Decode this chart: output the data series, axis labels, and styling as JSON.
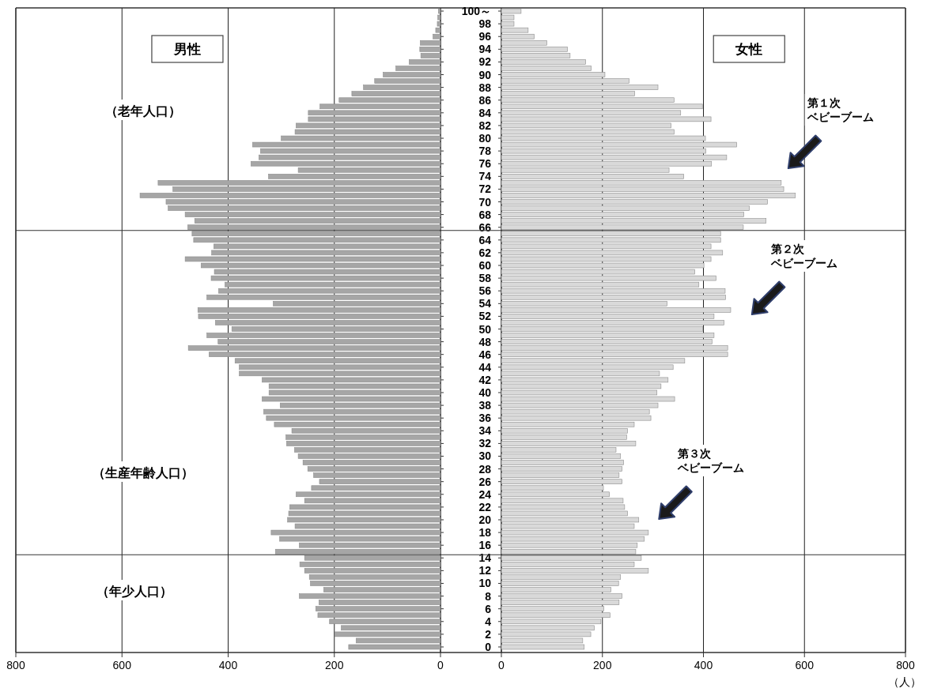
{
  "chart_data": [
    {
      "type": "bar",
      "orientation": "horizontal",
      "title": "男性",
      "x": [
        100,
        99,
        98,
        97,
        96,
        95,
        94,
        93,
        92,
        91,
        90,
        89,
        88,
        87,
        86,
        85,
        84,
        83,
        82,
        81,
        80,
        79,
        78,
        77,
        76,
        75,
        74,
        73,
        72,
        71,
        70,
        69,
        68,
        67,
        66,
        65,
        64,
        63,
        62,
        61,
        60,
        59,
        58,
        57,
        56,
        55,
        54,
        53,
        52,
        51,
        50,
        49,
        48,
        47,
        46,
        45,
        44,
        43,
        42,
        41,
        40,
        39,
        38,
        37,
        36,
        35,
        34,
        33,
        32,
        31,
        30,
        29,
        28,
        27,
        26,
        25,
        24,
        23,
        22,
        21,
        20,
        19,
        18,
        17,
        16,
        15,
        14,
        13,
        12,
        11,
        10,
        9,
        8,
        7,
        6,
        5,
        4,
        3,
        2,
        1,
        0
      ],
      "series": [
        {
          "color": "#a6a6a6",
          "values": [
            4,
            5,
            6,
            9,
            14,
            38,
            39,
            37,
            59,
            84,
            108,
            124,
            145,
            167,
            191,
            227,
            249,
            249,
            272,
            274,
            300,
            354,
            339,
            342,
            357,
            268,
            324,
            532,
            504,
            566,
            517,
            513,
            481,
            463,
            476,
            468,
            465,
            427,
            431,
            481,
            451,
            426,
            432,
            406,
            418,
            440,
            315,
            457,
            456,
            424,
            393,
            440,
            419,
            475,
            436,
            387,
            379,
            379,
            336,
            323,
            323,
            336,
            302,
            333,
            328,
            313,
            280,
            291,
            290,
            275,
            268,
            259,
            250,
            239,
            228,
            243,
            272,
            256,
            284,
            286,
            288,
            274,
            319,
            303,
            266,
            311,
            256,
            265,
            256,
            247,
            245,
            220,
            266,
            229,
            235,
            231,
            209,
            187,
            199,
            159,
            173
          ]
        }
      ],
      "xlim": [
        800,
        0
      ],
      "xticks": [
        800,
        600,
        400,
        200,
        0
      ],
      "ylim": [
        -0.5,
        100.5
      ],
      "yticks": [
        100,
        98,
        96,
        94,
        92,
        90,
        88,
        86,
        84,
        82,
        80,
        78,
        76,
        74,
        72,
        70,
        68,
        66,
        64,
        62,
        60,
        58,
        56,
        54,
        52,
        50,
        48,
        46,
        44,
        42,
        40,
        38,
        36,
        34,
        32,
        30,
        28,
        26,
        24,
        22,
        20,
        18,
        16,
        14,
        12,
        10,
        8,
        6,
        4,
        2,
        0
      ],
      "tick_labels": "x",
      "grid": "x",
      "ref_lines": [
        {
          "axis": "y",
          "value": 65.5
        },
        {
          "axis": "y",
          "value": 14.5
        }
      ],
      "annotations": [
        "（老年人口）",
        "（生産年齢人口）",
        "（年少人口）"
      ]
    },
    {
      "type": "bar",
      "orientation": "horizontal",
      "title": "女性",
      "xlabel": "（人）",
      "x": [
        100,
        99,
        98,
        97,
        96,
        95,
        94,
        93,
        92,
        91,
        90,
        89,
        88,
        87,
        86,
        85,
        84,
        83,
        82,
        81,
        80,
        79,
        78,
        77,
        76,
        75,
        74,
        73,
        72,
        71,
        70,
        69,
        68,
        67,
        66,
        65,
        64,
        63,
        62,
        61,
        60,
        59,
        58,
        57,
        56,
        55,
        54,
        53,
        52,
        51,
        50,
        49,
        48,
        47,
        46,
        45,
        44,
        43,
        42,
        41,
        40,
        39,
        38,
        37,
        36,
        35,
        34,
        33,
        32,
        31,
        30,
        29,
        28,
        27,
        26,
        25,
        24,
        23,
        22,
        21,
        20,
        19,
        18,
        17,
        16,
        15,
        14,
        13,
        12,
        11,
        10,
        9,
        8,
        7,
        6,
        5,
        4,
        3,
        2,
        1,
        0
      ],
      "series": [
        {
          "color": "#d9d9d9",
          "values": [
            39,
            25,
            25,
            53,
            65,
            90,
            131,
            136,
            167,
            178,
            205,
            253,
            310,
            264,
            342,
            398,
            355,
            415,
            336,
            342,
            404,
            466,
            405,
            446,
            416,
            332,
            361,
            554,
            559,
            582,
            527,
            491,
            480,
            524,
            479,
            434,
            434,
            415,
            438,
            415,
            401,
            383,
            425,
            391,
            443,
            444,
            328,
            454,
            421,
            441,
            399,
            421,
            417,
            448,
            448,
            363,
            340,
            313,
            330,
            316,
            308,
            343,
            310,
            293,
            296,
            263,
            250,
            248,
            266,
            227,
            236,
            242,
            239,
            233,
            239,
            202,
            214,
            241,
            244,
            250,
            272,
            263,
            291,
            283,
            269,
            266,
            277,
            263,
            291,
            236,
            232,
            217,
            239,
            233,
            203,
            215,
            197,
            184,
            177,
            161,
            164
          ]
        }
      ],
      "xlim": [
        0,
        800
      ],
      "xticks": [
        0,
        200,
        400,
        600,
        800
      ],
      "ylim": [
        -0.5,
        100.5
      ],
      "yticks": [
        {
          "value": 100,
          "label": "100～"
        },
        98,
        96,
        94,
        92,
        90,
        88,
        86,
        84,
        82,
        80,
        78,
        76,
        74,
        72,
        70,
        68,
        66,
        64,
        62,
        60,
        58,
        56,
        54,
        52,
        50,
        48,
        46,
        44,
        42,
        40,
        38,
        36,
        34,
        32,
        30,
        28,
        26,
        24,
        22,
        20,
        18,
        16,
        14,
        12,
        10,
        8,
        6,
        4,
        2,
        0
      ],
      "grid": "x",
      "ref_lines": [
        {
          "axis": "y",
          "value": 65.5
        },
        {
          "axis": "y",
          "value": 14.5
        }
      ],
      "annotations": [
        "第１次ベビーブーム",
        "第２次ベビーブーム",
        "第３次ベビーブーム"
      ]
    }
  ]
}
